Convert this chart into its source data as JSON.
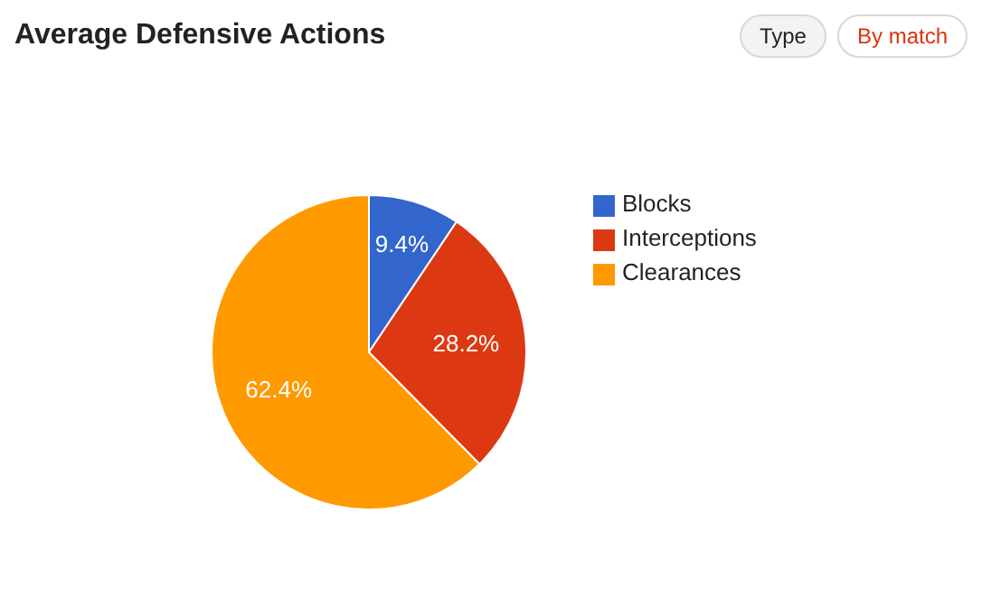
{
  "chart_data": {
    "type": "pie",
    "title": "Average Defensive Actions",
    "annotations": [
      "Type",
      "By match"
    ],
    "categories": [
      "Blocks",
      "Interceptions",
      "Clearances"
    ],
    "values": [
      9.4,
      28.2,
      62.4
    ],
    "colors": [
      "#3366cc",
      "#dc3912",
      "#ff9900"
    ],
    "value_labels": [
      "9.4%",
      "28.2%",
      "62.4%"
    ],
    "legend": "right"
  }
}
